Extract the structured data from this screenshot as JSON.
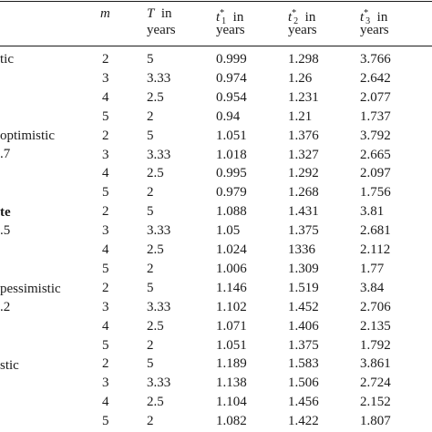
{
  "header": {
    "m": "m",
    "T": "T",
    "T_line1_suffix": "in",
    "T_line2": "years",
    "t1_base": "t",
    "t1_sup": "*",
    "t1_sub": "1",
    "t2_base": "t",
    "t2_sup": "*",
    "t2_sub": "2",
    "t3_base": "t",
    "t3_sup": "*",
    "t3_sub": "3",
    "in": "in",
    "years": "years"
  },
  "scenarios": [
    {
      "line1": "tic",
      "line2": "",
      "bold": false
    },
    {
      "line1": "optimistic",
      "line2": ".7",
      "bold": false
    },
    {
      "line1": "te",
      "line2": ".5",
      "bold": true
    },
    {
      "line1": "pessimistic",
      "line2": ".2",
      "bold": false
    },
    {
      "line1": "stic",
      "line2": "",
      "bold": false
    }
  ],
  "rows": [
    [
      "2",
      "5",
      "0.999",
      "1.298",
      "3.766"
    ],
    [
      "3",
      "3.33",
      "0.974",
      "1.26",
      "2.642"
    ],
    [
      "4",
      "2.5",
      "0.954",
      "1.231",
      "2.077"
    ],
    [
      "5",
      "2",
      "0.94",
      "1.21",
      "1.737"
    ],
    [
      "2",
      "5",
      "1.051",
      "1.376",
      "3.792"
    ],
    [
      "3",
      "3.33",
      "1.018",
      "1.327",
      "2.665"
    ],
    [
      "4",
      "2.5",
      "0.995",
      "1.292",
      "2.097"
    ],
    [
      "5",
      "2",
      "0.979",
      "1.268",
      "1.756"
    ],
    [
      "2",
      "5",
      "1.088",
      "1.431",
      "3.81"
    ],
    [
      "3",
      "3.33",
      "1.05",
      "1.375",
      "2.681"
    ],
    [
      "4",
      "2.5",
      "1.024",
      "1336",
      "2.112"
    ],
    [
      "5",
      "2",
      "1.006",
      "1.309",
      "1.77"
    ],
    [
      "2",
      "5",
      "1.146",
      "1.519",
      "3.84"
    ],
    [
      "3",
      "3.33",
      "1.102",
      "1.452",
      "2.706"
    ],
    [
      "4",
      "2.5",
      "1.071",
      "1.406",
      "2.135"
    ],
    [
      "5",
      "2",
      "1.051",
      "1.375",
      "1.792"
    ],
    [
      "2",
      "5",
      "1.189",
      "1.583",
      "3.861"
    ],
    [
      "3",
      "3.33",
      "1.138",
      "1.506",
      "2.724"
    ],
    [
      "4",
      "2.5",
      "1.104",
      "1.456",
      "2.152"
    ],
    [
      "5",
      "2",
      "1.082",
      "1.422",
      "1.807"
    ]
  ]
}
